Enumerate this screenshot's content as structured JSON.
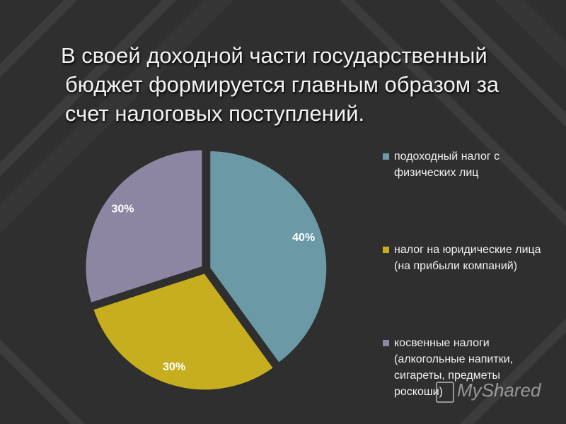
{
  "slide": {
    "title_line1": "В своей доходной части государственный",
    "title_line2": "бюджет формируется главным образом за",
    "title_line3": "счет налоговых поступлений."
  },
  "chart_data": {
    "type": "pie",
    "slices": [
      {
        "label": "подоходный налог с физических лиц",
        "value": 40,
        "data_label": "40%",
        "color": "#6b9aa6"
      },
      {
        "label": "налог на юридические лица (на прибыли компаний)",
        "value": 30,
        "data_label": "30%",
        "color": "#c6ae1e"
      },
      {
        "label": "косвенные налоги (алкогольные напитки, сигареты, предметы роскоши)",
        "value": 30,
        "data_label": "30%",
        "color": "#8c86a2"
      }
    ],
    "legend_position": "right"
  },
  "legend": [
    {
      "text": "подоходный налог с физических лиц",
      "color": "#6b9aa6"
    },
    {
      "text": "налог на юридические лица (на прибыли компаний)",
      "color": "#c6ae1e"
    },
    {
      "text": "косвенные налоги (алкогольные напитки, сигареты, предметы роскоши)",
      "color": "#8c86a2"
    }
  ],
  "watermark": {
    "text": "MyShared",
    "icon": "presentation-board-icon"
  }
}
